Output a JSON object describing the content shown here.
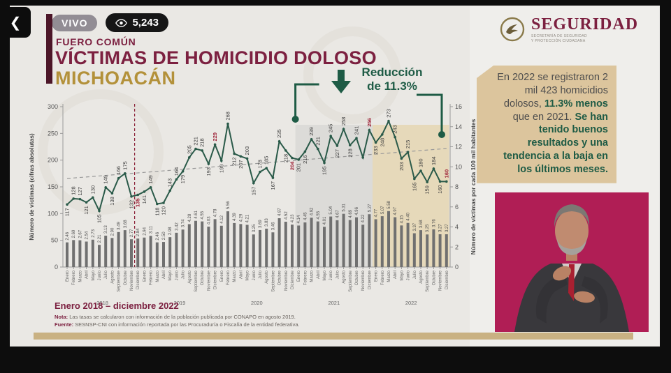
{
  "player": {
    "back_icon": "chevron-left-icon",
    "live_label": "VIVO",
    "viewers": "5,243",
    "viewers_icon": "eye-icon"
  },
  "header": {
    "agency": "SEGURIDAD",
    "agency_sub1": "SECRETARÍA DE SEGURIDAD",
    "agency_sub2": "Y PROTECCIÓN CIUDADANA",
    "kicker": "FUERO COMÚN",
    "title": "VÍCTIMAS DE HOMICIDIO DOLOSO",
    "state": "MICHOACÁN"
  },
  "callout": {
    "line1": "Reducción",
    "line2": "de 11.3%"
  },
  "info_box": {
    "seg1": "En 2022 se registraron 2 mil 423 homicidios dolosos, ",
    "seg2": "11.3% menos ",
    "seg3": "que en 2021. ",
    "seg4": "Se han tenido buenos resultados y una tendencia a la baja en los últimos meses."
  },
  "footer": {
    "period": "Enero 2018 – diciembre 2022",
    "nota_label": "Nota:",
    "nota_text": " Las tasas se calcularon con información de la población publicada por CONAPO en agosto 2019.",
    "fuente_label": "Fuente:",
    "fuente_text": " SESNSP-CNI con información reportada por las Procuraduría o Fiscalía de la entidad federativa."
  },
  "chart_data": {
    "type": "line",
    "title": "Víctimas de homicidio doloso, Michoacán, enero 2018 - diciembre 2022",
    "ylabel_left": "Número de víctimas (cifras absolutas)",
    "ylabel_right": "Número de víctimas por cada 100 mil habitantes",
    "ylim_left": [
      0,
      300
    ],
    "yticks_left": [
      0,
      50,
      100,
      150,
      200,
      250,
      300
    ],
    "ylim_right": [
      0,
      16
    ],
    "yticks_right": [
      0,
      2,
      4,
      6,
      8,
      10,
      12,
      14,
      16
    ],
    "years": [
      "2018",
      "2019",
      "2020",
      "2021",
      "2022"
    ],
    "months": [
      "Enero",
      "Febrero",
      "Marzo",
      "Abril",
      "Mayo",
      "Junio",
      "Julio",
      "Agosto",
      "Septiembre",
      "Octubre",
      "Noviembre",
      "Diciembre"
    ],
    "series": [
      {
        "name": "victimas",
        "values": [
          117,
          128,
          127,
          121,
          130,
          105,
          149,
          138,
          166,
          175,
          132,
          135,
          141,
          149,
          118,
          120,
          143,
          164,
          179,
          205,
          221,
          218,
          193,
          229,
          199,
          268,
          212,
          207,
          203,
          157,
          178,
          185,
          167,
          235,
          218,
          204,
          201,
          216,
          239,
          221,
          195,
          245,
          227,
          258,
          228,
          241,
          205,
          256,
          233,
          248,
          273,
          243,
          203,
          215,
          165,
          180,
          159,
          184,
          160,
          160
        ]
      },
      {
        "name": "tasa_por_100mil",
        "values": [
          "2.46",
          "2.69",
          "2.67",
          "2.54",
          "2.73",
          "2.21",
          "3.13",
          "2.90",
          "3.49",
          "3.68",
          "2.77",
          "2.84",
          "2.94",
          "3.11",
          "2.46",
          "2.50",
          "2.98",
          "3.42",
          "3.74",
          "4.28",
          "4.61",
          "4.55",
          "4.03",
          "4.78",
          "4.12",
          "5.56",
          "4.39",
          "4.29",
          "4.21",
          "3.25",
          "3.69",
          "3.83",
          "3.46",
          "4.87",
          "4.52",
          "4.23",
          "4.14",
          "4.45",
          "4.92",
          "4.55",
          "4.01",
          "5.04",
          "4.67",
          "5.31",
          "4.69",
          "4.96",
          "4.22",
          "5.27",
          "4.77",
          "5.07",
          "5.58",
          "4.97",
          "4.15",
          "4.40",
          "3.37",
          "3.68",
          "3.25",
          "3.76",
          "3.27",
          "3.27"
        ]
      }
    ],
    "red_label_indices": [
      11,
      23,
      35,
      47,
      59
    ],
    "hidden_label_indices": [
      46
    ],
    "vline_dashed_red_after_index": 10,
    "trend_line": "dashed gray, rising slightly across full range",
    "shaded_regions": [
      {
        "year": "2021",
        "color": "#dcdbd8"
      },
      {
        "year": "2022",
        "color": "#e6d9ba"
      }
    ],
    "colors": {
      "line": "#2a5a49",
      "bars": "#707070",
      "red_label": "#9c1f35",
      "accent_green": "#1e5b45",
      "accent_maroon": "#7c2040",
      "accent_gold": "#b3913a"
    },
    "legend_position": "none",
    "grid": false
  }
}
